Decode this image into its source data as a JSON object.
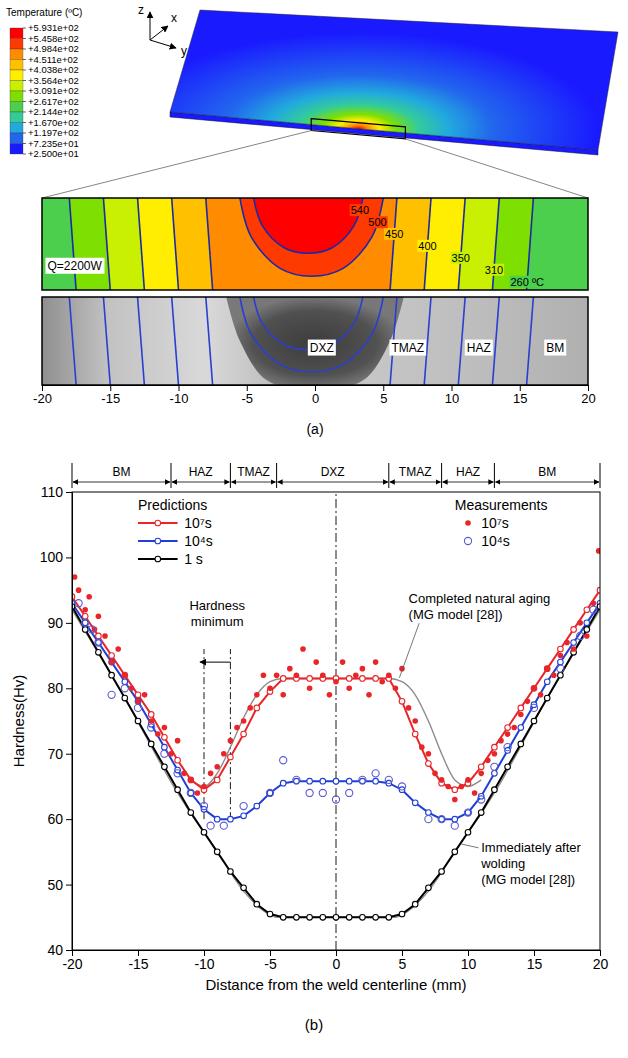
{
  "chart_data": [
    {
      "type": "contour",
      "caption": "(a)",
      "axis_letters": {
        "x": "x",
        "y": "y",
        "z": "z"
      },
      "colorbar": {
        "title": "Temperature (ºC)",
        "ticks": [
          {
            "value": 593.1,
            "label": "+5.931e+02"
          },
          {
            "value": 545.8,
            "label": "+5.458e+02"
          },
          {
            "value": 498.4,
            "label": "+4.984e+02"
          },
          {
            "value": 451.1,
            "label": "+4.511e+02"
          },
          {
            "value": 403.8,
            "label": "+4.038e+02"
          },
          {
            "value": 356.4,
            "label": "+3.564e+02"
          },
          {
            "value": 309.1,
            "label": "+3.091e+02"
          },
          {
            "value": 261.7,
            "label": "+2.617e+02"
          },
          {
            "value": 214.4,
            "label": "+2.144e+02"
          },
          {
            "value": 167,
            "label": "+1.670e+02"
          },
          {
            "value": 119.7,
            "label": "+1.197e+02"
          },
          {
            "value": 72.35,
            "label": "+7.235e+01"
          },
          {
            "value": 25,
            "label": "+2.500e+01"
          }
        ],
        "colors": [
          "#ff0000",
          "#ff3a00",
          "#ff8c00",
          "#ffc000",
          "#ffee00",
          "#c8f000",
          "#7ee000",
          "#4ccf4c",
          "#33cc99",
          "#22aadd",
          "#2266ee",
          "#1a1aff"
        ]
      },
      "heat_input": "Q=2200W",
      "isotherms": [
        {
          "value": 540,
          "x": [
            -4.5,
            3.5
          ]
        },
        {
          "value": 500,
          "x": [
            -5.5,
            5
          ]
        },
        {
          "value": 450,
          "x": [
            -8,
            6
          ]
        },
        {
          "value": 400,
          "x": [
            -10.5,
            8.5
          ]
        },
        {
          "value": 350,
          "x": [
            -13,
            11
          ]
        },
        {
          "value": 310,
          "x": [
            -15.5,
            13.5
          ]
        },
        {
          "value": 260,
          "label": "260 ºC",
          "x": [
            -18,
            16
          ]
        }
      ],
      "zones": [
        "DXZ",
        "TMAZ",
        "HAZ",
        "BM"
      ],
      "xlim": [
        -20,
        20
      ],
      "xticks": [
        -20,
        -15,
        -10,
        -5,
        0,
        5,
        10,
        15,
        20
      ]
    },
    {
      "type": "line",
      "caption": "(b)",
      "x_label": "Distance from the weld centerline (mm)",
      "y_label": "Hardness(Hv)",
      "xlim": [
        -20,
        20
      ],
      "xticks": [
        -20,
        -15,
        -10,
        -5,
        0,
        5,
        10,
        15,
        20
      ],
      "ylim": [
        40,
        110
      ],
      "yticks": [
        40,
        50,
        60,
        70,
        80,
        90,
        100,
        110
      ],
      "zones": {
        "labels": [
          "BM",
          "HAZ",
          "TMAZ",
          "DXZ",
          "TMAZ",
          "HAZ",
          "BM"
        ],
        "bounds": [
          -20,
          -12.5,
          -8,
          -4.5,
          4,
          8,
          12,
          20
        ]
      },
      "legend_titles": [
        "Predictions",
        "Measurements"
      ],
      "legend": "top",
      "series": [
        {
          "name": "10⁷s",
          "type": "line",
          "color": "#e8262a",
          "marker": "circle",
          "x": [
            -20,
            -19,
            -18,
            -17,
            -16,
            -15,
            -14,
            -13,
            -12,
            -11,
            -10,
            -9,
            -8,
            -7,
            -6,
            -5,
            -4,
            -3,
            -2,
            -1,
            0,
            1,
            2,
            3,
            4,
            5,
            6,
            7,
            8,
            9,
            10,
            11,
            12,
            13,
            14,
            15,
            16,
            17,
            18,
            19,
            20
          ],
          "values": [
            94,
            91,
            88,
            85,
            82,
            79,
            76,
            72.5,
            69,
            66,
            64.5,
            66,
            69.5,
            73,
            77,
            79.5,
            81.5,
            81.5,
            81.5,
            81.5,
            81.5,
            81.5,
            81.5,
            81.5,
            81.5,
            78,
            73,
            68.5,
            65.5,
            64.5,
            65.5,
            68,
            71,
            74,
            77,
            80,
            83,
            86,
            89,
            92,
            95
          ]
        },
        {
          "name": "10⁴s",
          "type": "line",
          "color": "#1f3fd6",
          "marker": "circle",
          "x": [
            -20,
            -19,
            -18,
            -17,
            -16,
            -15,
            -14,
            -13,
            -12,
            -11,
            -10,
            -9,
            -8,
            -7,
            -6,
            -5,
            -4,
            -3,
            -2,
            -1,
            0,
            1,
            2,
            3,
            4,
            5,
            6,
            7,
            8,
            9,
            10,
            11,
            12,
            13,
            14,
            15,
            16,
            17,
            18,
            19,
            20
          ],
          "values": [
            93,
            90,
            87,
            84,
            81,
            78,
            74.5,
            71,
            67.5,
            64,
            61.5,
            60,
            60,
            60.5,
            62,
            64,
            65.5,
            65.8,
            65.8,
            65.8,
            65.8,
            65.8,
            65.8,
            65.8,
            65.5,
            64.5,
            62.5,
            61,
            60,
            60,
            61,
            63.5,
            67,
            70.5,
            74,
            77.5,
            81,
            84,
            87,
            90,
            93
          ]
        },
        {
          "name": "1 s",
          "type": "line",
          "color": "#000000",
          "marker": "circle",
          "x": [
            -20,
            -19,
            -18,
            -17,
            -16,
            -15,
            -14,
            -13,
            -12,
            -11,
            -10,
            -9,
            -8,
            -7,
            -6,
            -5,
            -4,
            -3,
            -2,
            -1,
            0,
            1,
            2,
            3,
            4,
            5,
            6,
            7,
            8,
            9,
            10,
            11,
            12,
            13,
            14,
            15,
            16,
            17,
            18,
            19,
            20
          ],
          "values": [
            92.5,
            89,
            85.5,
            82,
            78.5,
            75,
            71.5,
            68,
            64.5,
            61,
            58,
            55,
            52,
            49.5,
            47,
            45.5,
            45,
            45,
            45,
            45,
            45,
            45,
            45,
            45,
            45,
            45.5,
            47,
            49.5,
            52,
            55,
            58,
            61,
            64.5,
            68,
            71.5,
            75,
            78.5,
            82,
            85.5,
            89,
            92.5
          ]
        },
        {
          "name": "10⁷s",
          "type": "scatter",
          "color": "#e8262a",
          "marker": "dot",
          "x": [
            -19.8,
            -19.5,
            -19,
            -18.7,
            -18.3,
            -18,
            -17.5,
            -17,
            -16.5,
            -16,
            -15.5,
            -15,
            -14.5,
            -14,
            -13.5,
            -13,
            -12.5,
            -12,
            -11.5,
            -11,
            -10.5,
            -10,
            -9.5,
            -9,
            -8.5,
            -8,
            -7.5,
            -7,
            -6.5,
            -6,
            -5.5,
            -5,
            -4.5,
            -4,
            -3.5,
            -3,
            -2.5,
            -2,
            -1.5,
            -1,
            -0.5,
            0,
            0.5,
            1,
            1.5,
            2,
            2.5,
            3,
            3.5,
            4,
            4.5,
            5,
            5.5,
            6,
            6.5,
            7,
            7.5,
            8,
            8.5,
            9,
            9.5,
            10,
            10.5,
            11,
            11.5,
            12,
            12.5,
            13,
            13.5,
            14,
            14.5,
            15,
            15.5,
            16,
            16.5,
            17,
            17.5,
            18,
            18.5,
            19,
            19.5,
            19.9
          ],
          "values": [
            97,
            95,
            92,
            94,
            89,
            91,
            88,
            84,
            86,
            82,
            80,
            78,
            79,
            75,
            73,
            74,
            70,
            72,
            67,
            66,
            64,
            65,
            67,
            68,
            70,
            72,
            74,
            75,
            77,
            79,
            82,
            80,
            82,
            79,
            83,
            82,
            86,
            80,
            84,
            82,
            79,
            81,
            84,
            80,
            82,
            83,
            79,
            84,
            81,
            82,
            80,
            83,
            77,
            75,
            71,
            70,
            67,
            66,
            65,
            63,
            65,
            66,
            64,
            67,
            69,
            70,
            72,
            73,
            74,
            76,
            78,
            80,
            79,
            83,
            82,
            85,
            87,
            86,
            90,
            88,
            93,
            101
          ]
        },
        {
          "name": "10⁴s",
          "type": "scatter",
          "color": "#5a5ad0",
          "marker": "open-circle",
          "x": [
            -19.5,
            -19,
            -18.5,
            -18,
            -17,
            -16,
            -15,
            -14,
            -13,
            -12,
            -11,
            -10,
            -9.5,
            -8.5,
            -7,
            -5,
            -4,
            -3,
            -2,
            -1,
            0,
            1,
            2,
            3,
            4,
            5,
            7,
            8,
            9,
            10,
            11,
            12,
            13,
            15,
            17,
            18.5,
            19.5
          ],
          "values": [
            93,
            90,
            89,
            87,
            79,
            80,
            77,
            74,
            70,
            67,
            64,
            62,
            59,
            59,
            62,
            64,
            69,
            66,
            64,
            64,
            63,
            64,
            66,
            67,
            66,
            65,
            60,
            60,
            59,
            61,
            63,
            68,
            71,
            77,
            83,
            88,
            92
          ]
        }
      ],
      "model_curves": [
        {
          "name": "Completed natural aging (MG model [28])",
          "color": "#8c8c8c",
          "x": [
            -11,
            -10,
            -9,
            -8,
            -7,
            -6,
            -5,
            -4,
            4,
            5,
            6,
            7,
            8,
            9,
            10,
            11
          ],
          "values": [
            66,
            65,
            67,
            71,
            75.5,
            79,
            81,
            81.5,
            81.5,
            81,
            79,
            75,
            70,
            66,
            65,
            66
          ]
        },
        {
          "name": "Immediately after wolding (MG model [28])",
          "color": "#8c8c8c",
          "x": [
            -20,
            -16,
            -12,
            -9,
            -7,
            -5.5,
            -4.5,
            4.5,
            5.5,
            7,
            9,
            12,
            16,
            20
          ],
          "values": [
            92,
            78.5,
            64,
            55,
            49,
            46,
            45,
            45,
            46,
            49,
            55,
            64,
            78.5,
            92
          ]
        }
      ],
      "annotations": [
        "Hardness minimum"
      ],
      "hardness_minimum_range": [
        -10,
        -8
      ],
      "centerline": 0
    }
  ]
}
